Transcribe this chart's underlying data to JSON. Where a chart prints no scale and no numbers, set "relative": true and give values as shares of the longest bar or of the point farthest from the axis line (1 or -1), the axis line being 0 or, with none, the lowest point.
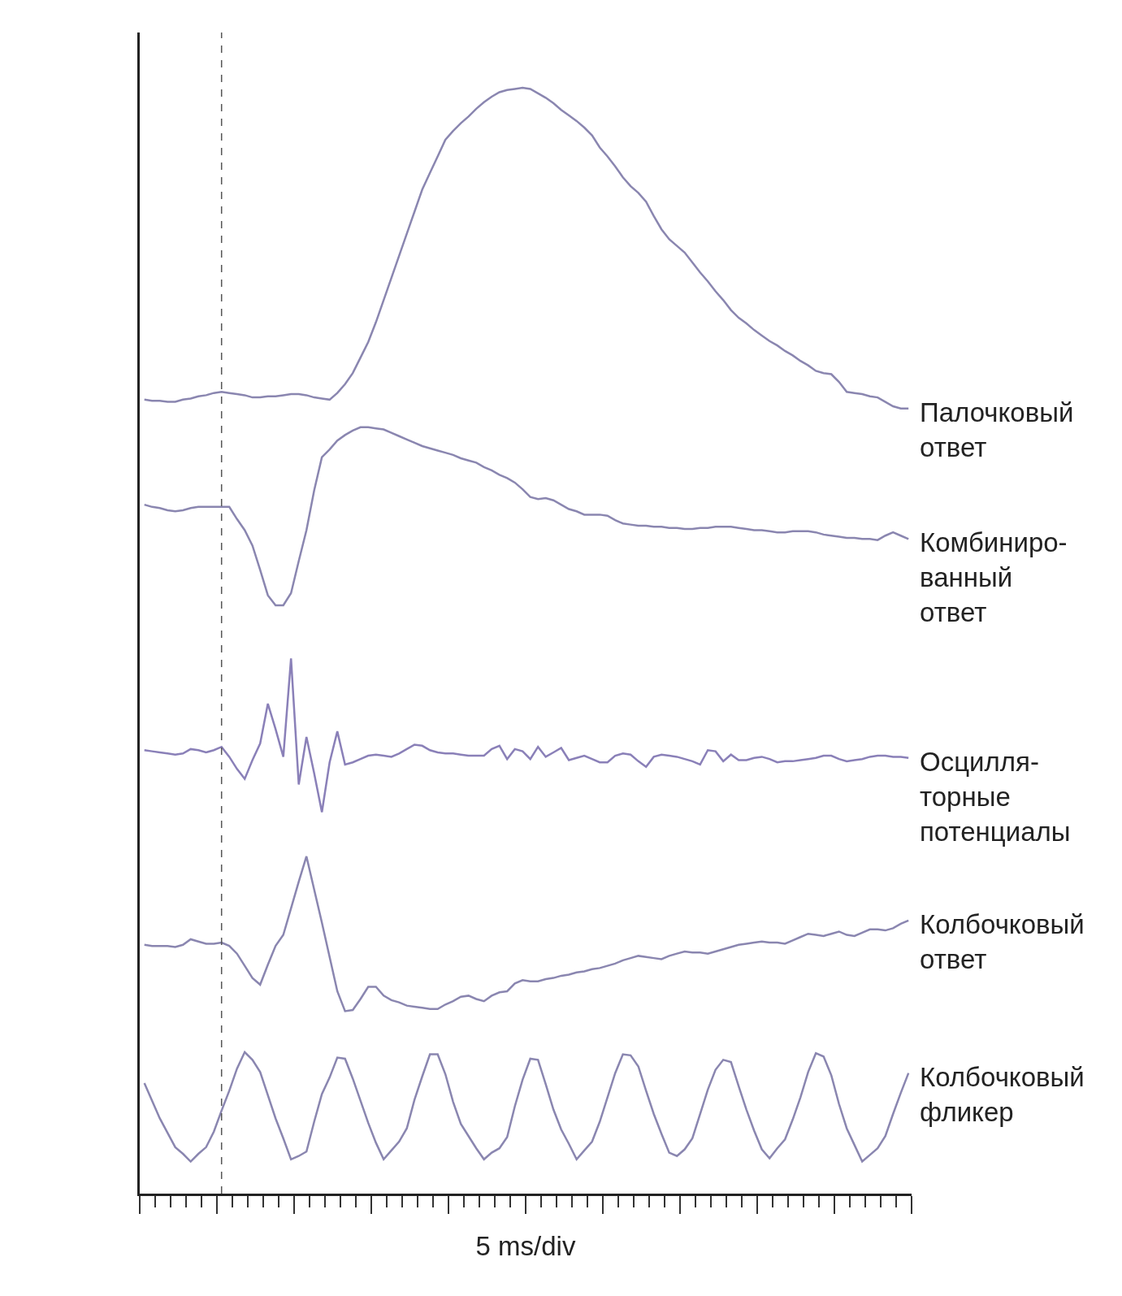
{
  "chart_data": {
    "type": "line",
    "relative": true,
    "xlabel": "5 ms/div",
    "legend": false,
    "marker": "none",
    "line_style": "solid",
    "categories": [
      null,
      null,
      null,
      null,
      null,
      null,
      null,
      null,
      null,
      null,
      null,
      null,
      null,
      null,
      null,
      null,
      null,
      null,
      null,
      null,
      null,
      null,
      null,
      null,
      null,
      null,
      null,
      null,
      null,
      null,
      null,
      null,
      null,
      null,
      null,
      null,
      null,
      null,
      null,
      null,
      null,
      null,
      null,
      null,
      null,
      null,
      null,
      null,
      null,
      null,
      null,
      null,
      null,
      null,
      null,
      null,
      null,
      null,
      null,
      null,
      null,
      null,
      null,
      null,
      null,
      null,
      null,
      null,
      null,
      null,
      null,
      null,
      null,
      null,
      null,
      null,
      null,
      null,
      null,
      null,
      null,
      null,
      null,
      null,
      null,
      null,
      null,
      null,
      null,
      null,
      null,
      null,
      null,
      null,
      null,
      null,
      null,
      null,
      null,
      null
    ],
    "series": [
      {
        "name": "Палочковый\nответ",
        "color": "#8a86b0",
        "values": [
          0.718,
          0.717,
          0.717,
          0.716,
          0.716,
          0.718,
          0.719,
          0.721,
          0.722,
          0.724,
          0.725,
          0.724,
          0.723,
          0.722,
          0.72,
          0.72,
          0.721,
          0.721,
          0.722,
          0.723,
          0.723,
          0.722,
          0.72,
          0.719,
          0.718,
          0.724,
          0.732,
          0.742,
          0.756,
          0.77,
          0.788,
          0.808,
          0.828,
          0.848,
          0.868,
          0.888,
          0.908,
          0.923,
          0.938,
          0.953,
          0.961,
          0.968,
          0.974,
          0.981,
          0.987,
          0.992,
          0.996,
          0.998,
          0.999,
          1.0,
          0.999,
          0.995,
          0.991,
          0.986,
          0.98,
          0.975,
          0.97,
          0.964,
          0.957,
          0.946,
          0.938,
          0.929,
          0.919,
          0.911,
          0.905,
          0.897,
          0.884,
          0.872,
          0.863,
          0.857,
          0.851,
          0.842,
          0.833,
          0.825,
          0.816,
          0.808,
          0.799,
          0.792,
          0.787,
          0.781,
          0.776,
          0.771,
          0.767,
          0.762,
          0.758,
          0.753,
          0.749,
          0.744,
          0.742,
          0.741,
          0.734,
          0.725,
          0.724,
          0.723,
          0.721,
          0.72,
          0.716,
          0.712,
          0.71,
          0.71
        ]
      },
      {
        "name": "Комбиниро-\nванный\nответ",
        "color": "#8a86b0",
        "values": [
          0.623,
          0.621,
          0.62,
          0.618,
          0.617,
          0.618,
          0.62,
          0.621,
          0.621,
          0.621,
          0.621,
          0.621,
          0.61,
          0.6,
          0.586,
          0.564,
          0.541,
          0.532,
          0.532,
          0.543,
          0.572,
          0.6,
          0.636,
          0.666,
          0.673,
          0.681,
          0.686,
          0.69,
          0.693,
          0.693,
          0.692,
          0.691,
          0.688,
          0.685,
          0.682,
          0.679,
          0.676,
          0.674,
          0.672,
          0.67,
          0.668,
          0.665,
          0.663,
          0.661,
          0.657,
          0.654,
          0.65,
          0.647,
          0.643,
          0.637,
          0.63,
          0.628,
          0.629,
          0.627,
          0.623,
          0.619,
          0.617,
          0.614,
          0.614,
          0.614,
          0.613,
          0.609,
          0.606,
          0.605,
          0.604,
          0.604,
          0.603,
          0.603,
          0.602,
          0.602,
          0.601,
          0.601,
          0.602,
          0.602,
          0.603,
          0.603,
          0.603,
          0.602,
          0.601,
          0.6,
          0.6,
          0.599,
          0.598,
          0.598,
          0.599,
          0.599,
          0.599,
          0.598,
          0.596,
          0.595,
          0.594,
          0.593,
          0.593,
          0.592,
          0.592,
          0.591,
          0.595,
          0.598,
          0.595,
          0.592
        ]
      },
      {
        "name": "Осцилля-\nторные\nпотенциалы",
        "color": "#8a80b8",
        "values": [
          0.401,
          0.4,
          0.399,
          0.398,
          0.397,
          0.398,
          0.402,
          0.401,
          0.399,
          0.401,
          0.404,
          0.395,
          0.384,
          0.375,
          0.392,
          0.407,
          0.443,
          0.42,
          0.395,
          0.484,
          0.37,
          0.413,
          0.38,
          0.345,
          0.39,
          0.418,
          0.388,
          0.39,
          0.393,
          0.396,
          0.397,
          0.396,
          0.395,
          0.398,
          0.402,
          0.406,
          0.405,
          0.401,
          0.399,
          0.398,
          0.398,
          0.397,
          0.396,
          0.396,
          0.396,
          0.402,
          0.405,
          0.393,
          0.402,
          0.4,
          0.393,
          0.404,
          0.395,
          0.399,
          0.403,
          0.392,
          0.394,
          0.396,
          0.393,
          0.39,
          0.39,
          0.396,
          0.398,
          0.397,
          0.391,
          0.386,
          0.395,
          0.397,
          0.396,
          0.395,
          0.393,
          0.391,
          0.388,
          0.401,
          0.4,
          0.391,
          0.397,
          0.392,
          0.392,
          0.394,
          0.395,
          0.393,
          0.39,
          0.391,
          0.391,
          0.392,
          0.393,
          0.394,
          0.396,
          0.396,
          0.393,
          0.391,
          0.392,
          0.393,
          0.395,
          0.396,
          0.396,
          0.395,
          0.395,
          0.394
        ]
      },
      {
        "name": "Колбочковый\nответ",
        "color": "#8a86b0",
        "values": [
          0.225,
          0.224,
          0.224,
          0.224,
          0.223,
          0.225,
          0.23,
          0.228,
          0.226,
          0.226,
          0.227,
          0.224,
          0.217,
          0.206,
          0.195,
          0.189,
          0.207,
          0.224,
          0.234,
          0.258,
          0.282,
          0.305,
          0.275,
          0.245,
          0.214,
          0.183,
          0.165,
          0.166,
          0.176,
          0.187,
          0.187,
          0.179,
          0.175,
          0.173,
          0.17,
          0.169,
          0.168,
          0.167,
          0.167,
          0.171,
          0.174,
          0.178,
          0.179,
          0.176,
          0.174,
          0.179,
          0.182,
          0.183,
          0.19,
          0.193,
          0.192,
          0.192,
          0.194,
          0.195,
          0.197,
          0.198,
          0.2,
          0.201,
          0.203,
          0.204,
          0.206,
          0.208,
          0.211,
          0.213,
          0.215,
          0.214,
          0.213,
          0.212,
          0.215,
          0.217,
          0.219,
          0.218,
          0.218,
          0.217,
          0.219,
          0.221,
          0.223,
          0.225,
          0.226,
          0.227,
          0.228,
          0.227,
          0.227,
          0.226,
          0.229,
          0.232,
          0.235,
          0.234,
          0.233,
          0.235,
          0.237,
          0.234,
          0.233,
          0.236,
          0.239,
          0.239,
          0.238,
          0.24,
          0.244,
          0.247
        ]
      },
      {
        "name": "Колбочковый\nфликер",
        "color": "#8a86b0",
        "values": [
          0.1,
          0.084,
          0.068,
          0.055,
          0.042,
          0.036,
          0.029,
          0.036,
          0.042,
          0.056,
          0.075,
          0.093,
          0.113,
          0.128,
          0.121,
          0.11,
          0.089,
          0.068,
          0.05,
          0.031,
          0.034,
          0.038,
          0.065,
          0.09,
          0.105,
          0.123,
          0.122,
          0.104,
          0.084,
          0.064,
          0.046,
          0.031,
          0.039,
          0.047,
          0.059,
          0.085,
          0.106,
          0.126,
          0.126,
          0.108,
          0.083,
          0.063,
          0.052,
          0.041,
          0.031,
          0.037,
          0.041,
          0.051,
          0.079,
          0.103,
          0.122,
          0.121,
          0.099,
          0.076,
          0.058,
          0.045,
          0.031,
          0.039,
          0.047,
          0.065,
          0.087,
          0.109,
          0.126,
          0.125,
          0.115,
          0.093,
          0.072,
          0.054,
          0.037,
          0.034,
          0.04,
          0.05,
          0.072,
          0.094,
          0.112,
          0.121,
          0.119,
          0.097,
          0.076,
          0.057,
          0.04,
          0.032,
          0.041,
          0.049,
          0.067,
          0.087,
          0.11,
          0.127,
          0.124,
          0.107,
          0.081,
          0.059,
          0.044,
          0.029,
          0.035,
          0.041,
          0.052,
          0.072,
          0.091,
          0.109
        ]
      }
    ]
  }
}
